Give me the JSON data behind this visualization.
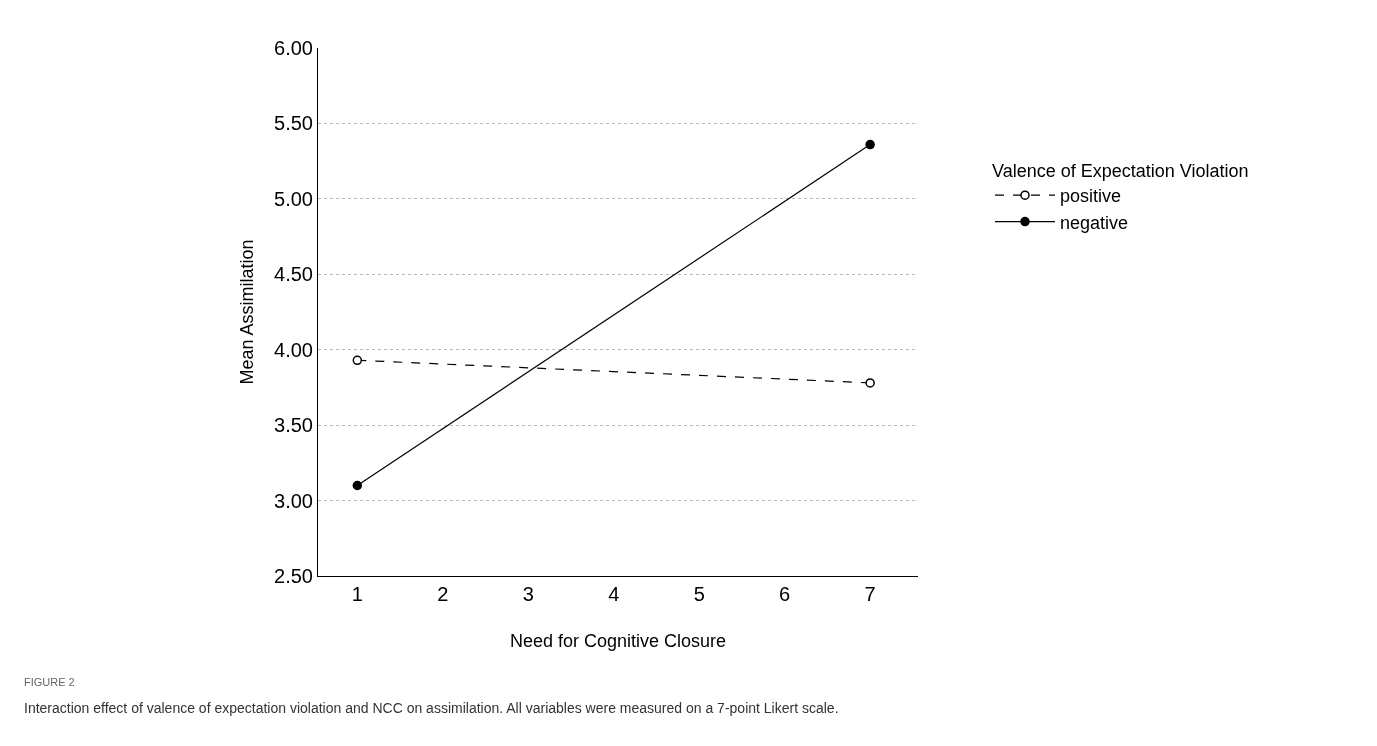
{
  "chart_data": {
    "type": "line",
    "xlabel": "Need for Cognitive Closure",
    "ylabel": "Mean Assimilation",
    "legend_title": "Valence of Expectation Violation",
    "x": [
      1,
      7
    ],
    "series": [
      {
        "name": "positive",
        "color": "#000000",
        "values": [
          3.93,
          3.78
        ],
        "line_style": "dashed"
      },
      {
        "name": "negative",
        "color": "#000000",
        "values": [
          3.1,
          5.36
        ],
        "line_style": "solid"
      }
    ],
    "xlim": [
      0.54,
      7.56
    ],
    "xticks": [
      1,
      2,
      3,
      4,
      5,
      6,
      7
    ],
    "ylim": [
      2.5,
      6
    ],
    "yticks": [
      {
        "value": 2.5,
        "label": "2.50"
      },
      {
        "value": 3,
        "label": "3.00"
      },
      {
        "value": 3.5,
        "label": "3.50"
      },
      {
        "value": 4,
        "label": "4.00"
      },
      {
        "value": 4.5,
        "label": "4.50"
      },
      {
        "value": 5,
        "label": "5.00"
      },
      {
        "value": 5.5,
        "label": "5.50"
      },
      {
        "value": 6,
        "label": "6.00"
      }
    ],
    "grid": "y",
    "legend": "right",
    "marker": "circle",
    "annotations": [
      "FIGURE 2",
      "Interaction effect of valence of expectation violation and NCC on assimilation. All variables were measured on a 7-point Likert scale."
    ]
  }
}
